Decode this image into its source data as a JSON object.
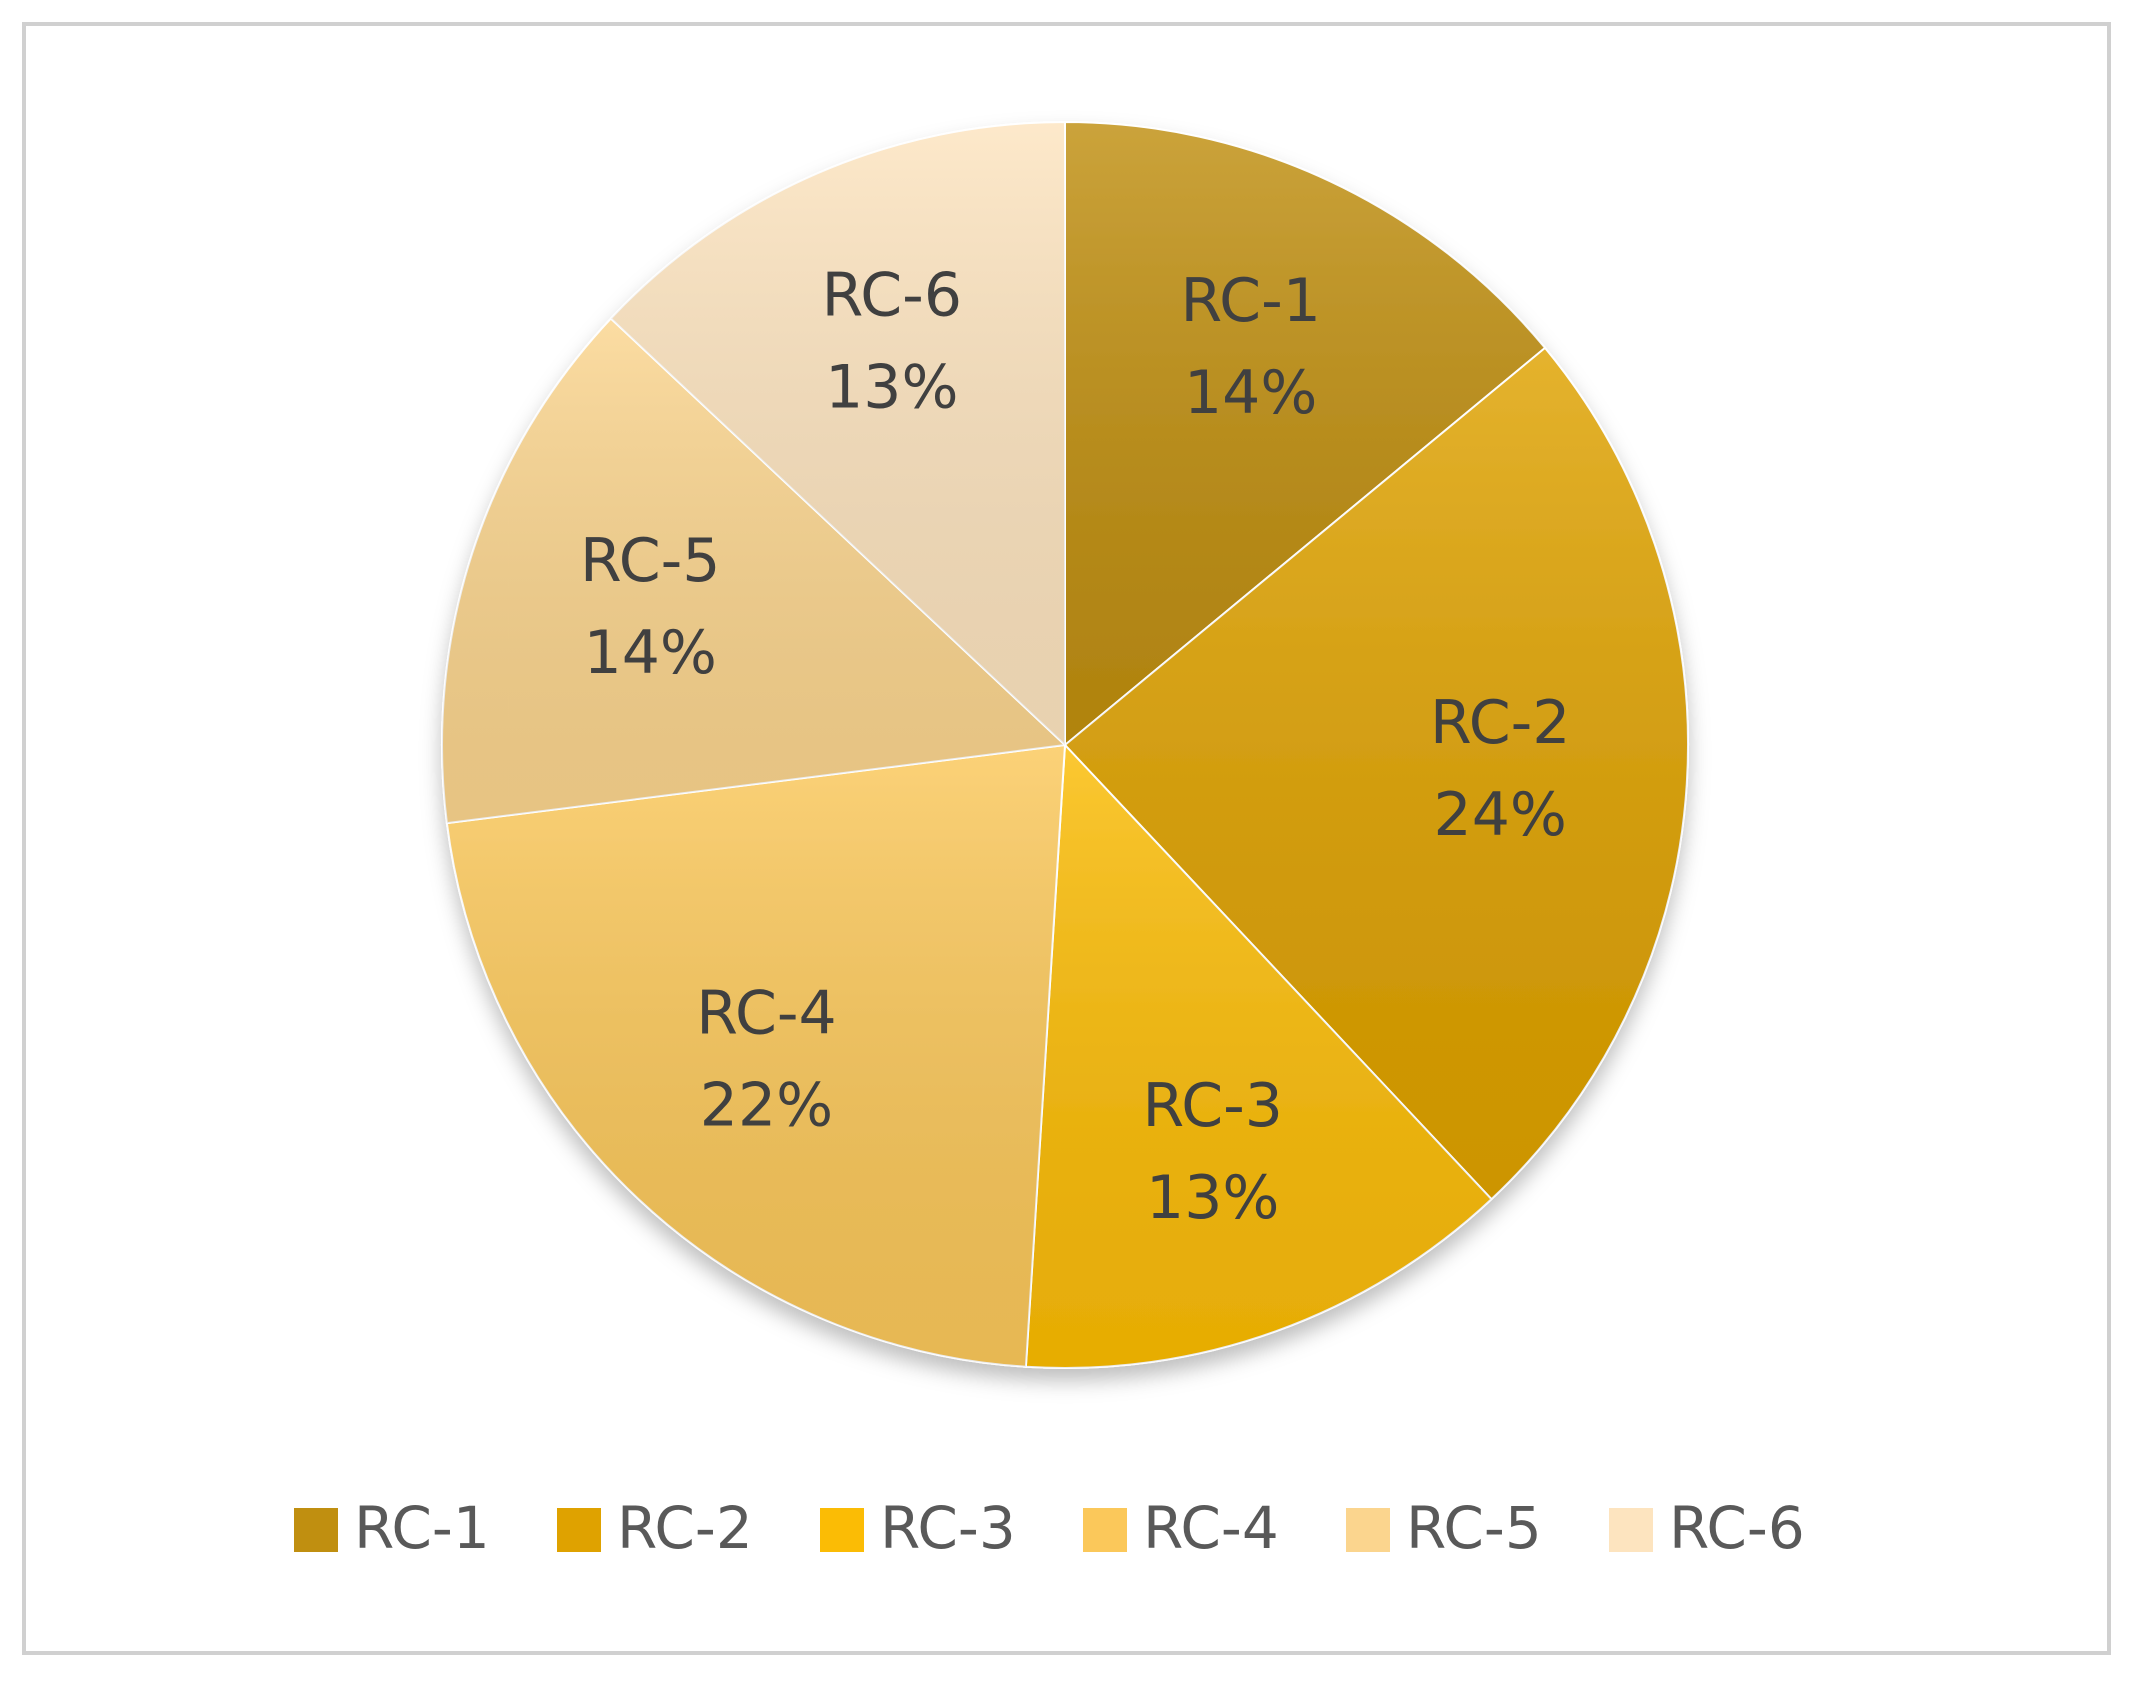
{
  "chart_data": {
    "type": "pie",
    "categories": [
      "RC-1",
      "RC-2",
      "RC-3",
      "RC-4",
      "RC-5",
      "RC-6"
    ],
    "values": [
      14,
      24,
      13,
      22,
      14,
      13
    ],
    "value_labels": [
      "14%",
      "24%",
      "13%",
      "22%",
      "14%",
      "13%"
    ],
    "colors": [
      "#c08f10",
      "#dfa200",
      "#fbbc05",
      "#fbc85a",
      "#fbd58e",
      "#fde4bf"
    ],
    "legend": "bottom"
  }
}
